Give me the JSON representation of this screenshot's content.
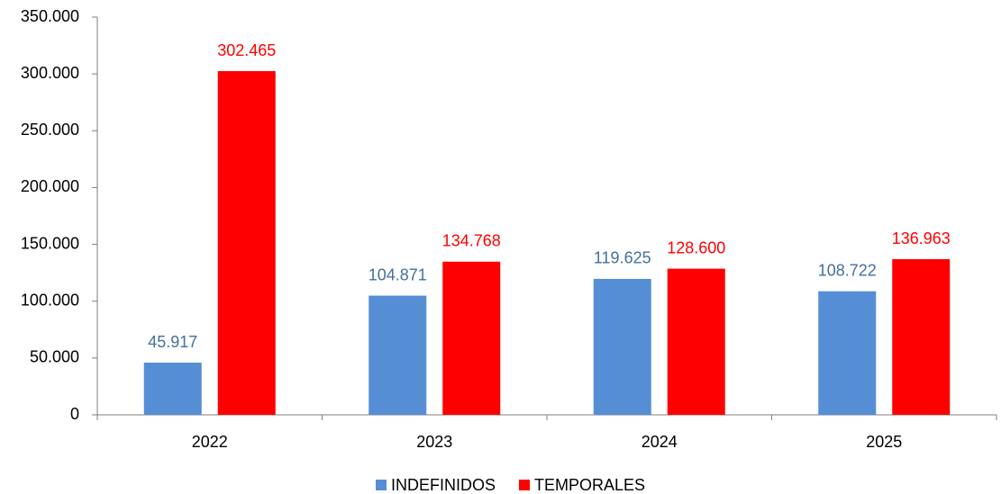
{
  "chart_data": {
    "type": "bar",
    "categories": [
      "2022",
      "2023",
      "2024",
      "2025"
    ],
    "series": [
      {
        "name": "INDEFINIDOS",
        "color": "#558ed5",
        "label_color": "#44709d",
        "values": [
          45917,
          104871,
          119625,
          108722
        ],
        "value_labels": [
          "45.917",
          "104.871",
          "119.625",
          "108.722"
        ]
      },
      {
        "name": "TEMPORALES",
        "color": "#ff0000",
        "label_color": "#ff0000",
        "values": [
          302465,
          134768,
          128600,
          136963
        ],
        "value_labels": [
          "302.465",
          "134.768",
          "128.600",
          "136.963"
        ]
      }
    ],
    "ylim": [
      0,
      350000
    ],
    "yticks": [
      0,
      {
        "value": 50000,
        "label": "50.000"
      },
      {
        "value": 100000,
        "label": "100.000"
      },
      {
        "value": 150000,
        "label": "150.000"
      },
      {
        "value": 200000,
        "label": "200.000"
      },
      {
        "value": 250000,
        "label": "250.000"
      },
      {
        "value": 300000,
        "label": "300.000"
      },
      {
        "value": 350000,
        "label": "350.000"
      }
    ],
    "grid": false,
    "legend": "bottom"
  }
}
